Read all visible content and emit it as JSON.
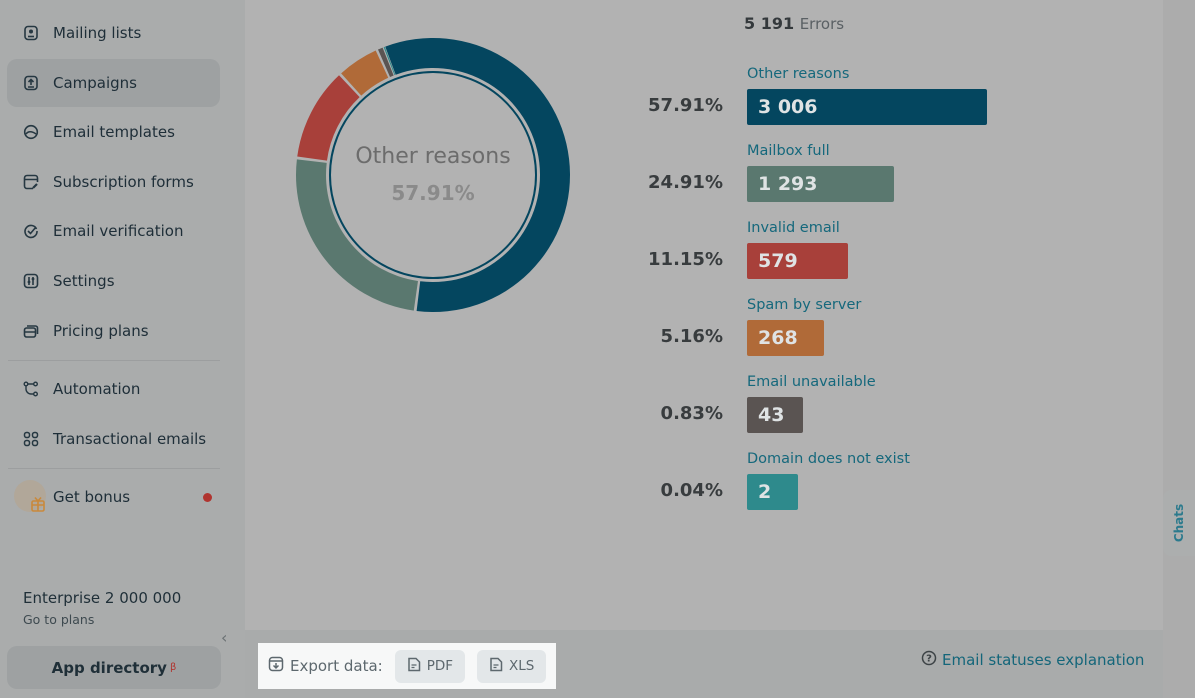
{
  "sidebar": {
    "items": [
      {
        "label": "Mailing lists",
        "icon": "contact-book-icon"
      },
      {
        "label": "Campaigns",
        "icon": "upload-tray-icon",
        "active": true
      },
      {
        "label": "Email templates",
        "icon": "template-icon"
      },
      {
        "label": "Subscription forms",
        "icon": "form-edit-icon"
      },
      {
        "label": "Email verification",
        "icon": "check-badge-icon"
      },
      {
        "label": "Settings",
        "icon": "sliders-icon"
      },
      {
        "label": "Pricing plans",
        "icon": "cards-icon"
      },
      {
        "label": "Automation",
        "icon": "flow-icon"
      },
      {
        "label": "Transactional emails",
        "icon": "grid-icon"
      },
      {
        "label": "Get bonus",
        "icon": "gift-icon"
      }
    ],
    "plan": "Enterprise 2 000 000",
    "go_to_plans": "Go to plans",
    "app_directory": "App directory",
    "beta": "β"
  },
  "summary": {
    "total": "5 191",
    "label": "Errors"
  },
  "chart_data": {
    "type": "pie",
    "title": "Errors",
    "center_label": "Other reasons",
    "center_value": "57.91%",
    "categories": [
      "Other reasons",
      "Mailbox full",
      "Invalid email",
      "Spam by server",
      "Email unavailable",
      "Domain does not exist"
    ],
    "values": [
      3006,
      1293,
      579,
      268,
      43,
      2
    ],
    "value_labels": [
      "3 006",
      "1 293",
      "579",
      "268",
      "43",
      "2"
    ],
    "percents": [
      "57.91%",
      "24.91%",
      "11.15%",
      "5.16%",
      "0.83%",
      "0.04%"
    ],
    "colors": [
      "#04465f",
      "#5a786f",
      "#a8403a",
      "#b06a38",
      "#5a5452",
      "#2e8a8c"
    ]
  },
  "footer": {
    "export_label": "Export data:",
    "pdf": "PDF",
    "xls": "XLS",
    "statuses_link": "Email statuses explanation"
  },
  "chats": "Chats"
}
